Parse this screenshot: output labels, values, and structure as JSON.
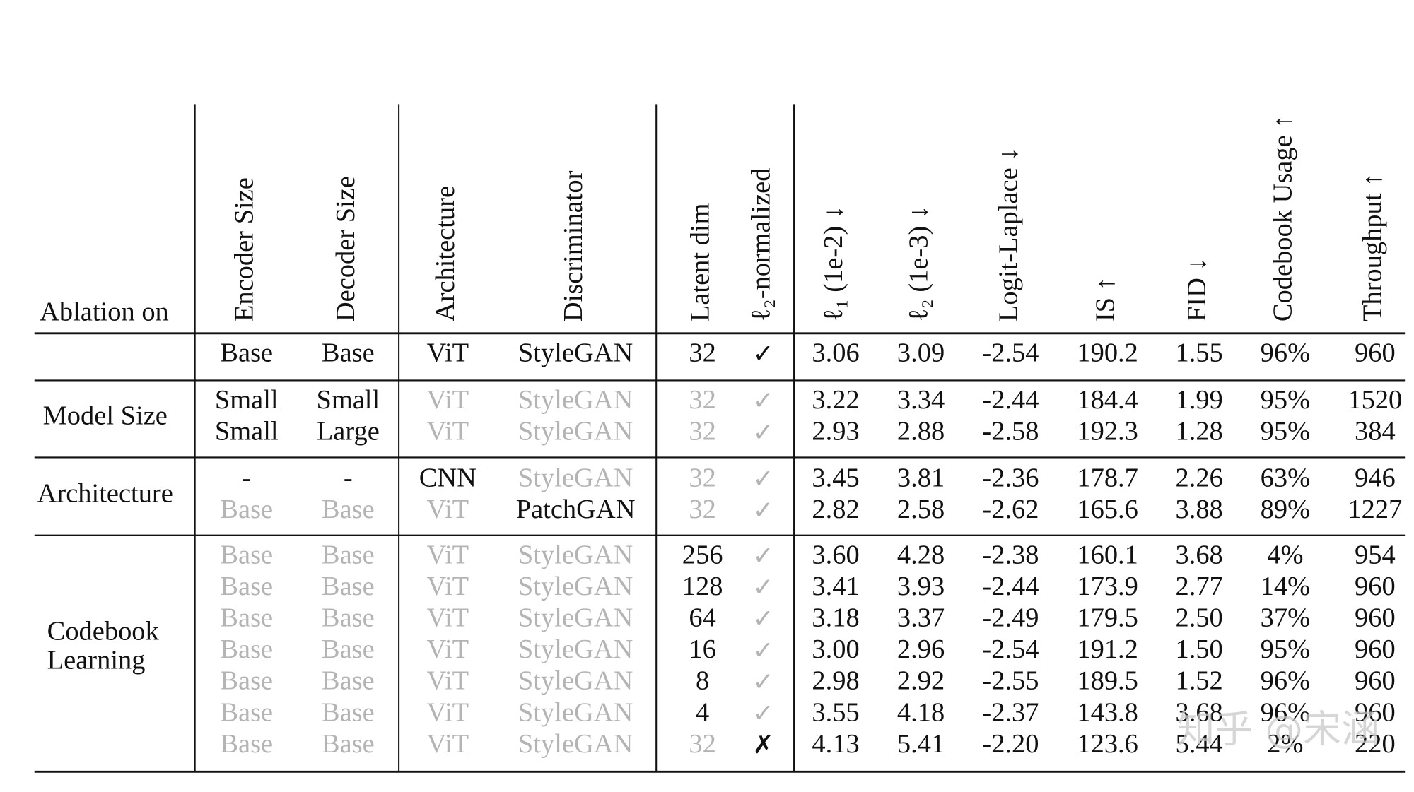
{
  "table": {
    "header": [
      "Ablation on",
      "Encoder Size",
      "Decoder Size",
      "Architecture",
      "Discriminator",
      "Latent dim",
      "ℓ₂-normalized",
      "ℓ₁ (1e-2) ↓",
      "ℓ₂ (1e-3) ↓",
      "Logit-Laplace ↓",
      "IS ↑",
      "FID ↓",
      "Codebook Usage ↑",
      "Throughput ↑"
    ],
    "groups": [
      {
        "rows": [
          {
            "cells": [
              "Base",
              "Base",
              "ViT",
              "StyleGAN",
              "32",
              "✓",
              "3.06",
              "3.09",
              "-2.54",
              "190.2",
              "1.55",
              "96%",
              "960"
            ],
            "muted": [
              false,
              false,
              false,
              false,
              false,
              false,
              false,
              false,
              false,
              false,
              false,
              false,
              false
            ]
          }
        ]
      },
      {
        "label": [
          "Model Size"
        ],
        "rows": [
          {
            "cells": [
              "Small",
              "Small",
              "ViT",
              "StyleGAN",
              "32",
              "✓",
              "3.22",
              "3.34",
              "-2.44",
              "184.4",
              "1.99",
              "95%",
              "1520"
            ],
            "muted": [
              false,
              false,
              true,
              true,
              true,
              true,
              false,
              false,
              false,
              false,
              false,
              false,
              false
            ]
          },
          {
            "cells": [
              "Small",
              "Large",
              "ViT",
              "StyleGAN",
              "32",
              "✓",
              "2.93",
              "2.88",
              "-2.58",
              "192.3",
              "1.28",
              "95%",
              "384"
            ],
            "muted": [
              false,
              false,
              true,
              true,
              true,
              true,
              false,
              false,
              false,
              false,
              false,
              false,
              false
            ]
          }
        ]
      },
      {
        "label": [
          "Architecture"
        ],
        "rows": [
          {
            "cells": [
              "-",
              "-",
              "CNN",
              "StyleGAN",
              "32",
              "✓",
              "3.45",
              "3.81",
              "-2.36",
              "178.7",
              "2.26",
              "63%",
              "946"
            ],
            "muted": [
              false,
              false,
              false,
              true,
              true,
              true,
              false,
              false,
              false,
              false,
              false,
              false,
              false
            ]
          },
          {
            "cells": [
              "Base",
              "Base",
              "ViT",
              "PatchGAN",
              "32",
              "✓",
              "2.82",
              "2.58",
              "-2.62",
              "165.6",
              "3.88",
              "89%",
              "1227"
            ],
            "muted": [
              true,
              true,
              true,
              false,
              true,
              true,
              false,
              false,
              false,
              false,
              false,
              false,
              false
            ]
          }
        ]
      },
      {
        "label": [
          "Codebook",
          "Learning"
        ],
        "rows": [
          {
            "cells": [
              "Base",
              "Base",
              "ViT",
              "StyleGAN",
              "256",
              "✓",
              "3.60",
              "4.28",
              "-2.38",
              "160.1",
              "3.68",
              "4%",
              "954"
            ],
            "muted": [
              true,
              true,
              true,
              true,
              false,
              true,
              false,
              false,
              false,
              false,
              false,
              false,
              false
            ]
          },
          {
            "cells": [
              "Base",
              "Base",
              "ViT",
              "StyleGAN",
              "128",
              "✓",
              "3.41",
              "3.93",
              "-2.44",
              "173.9",
              "2.77",
              "14%",
              "960"
            ],
            "muted": [
              true,
              true,
              true,
              true,
              false,
              true,
              false,
              false,
              false,
              false,
              false,
              false,
              false
            ]
          },
          {
            "cells": [
              "Base",
              "Base",
              "ViT",
              "StyleGAN",
              "64",
              "✓",
              "3.18",
              "3.37",
              "-2.49",
              "179.5",
              "2.50",
              "37%",
              "960"
            ],
            "muted": [
              true,
              true,
              true,
              true,
              false,
              true,
              false,
              false,
              false,
              false,
              false,
              false,
              false
            ]
          },
          {
            "cells": [
              "Base",
              "Base",
              "ViT",
              "StyleGAN",
              "16",
              "✓",
              "3.00",
              "2.96",
              "-2.54",
              "191.2",
              "1.50",
              "95%",
              "960"
            ],
            "muted": [
              true,
              true,
              true,
              true,
              false,
              true,
              false,
              false,
              false,
              false,
              false,
              false,
              false
            ]
          },
          {
            "cells": [
              "Base",
              "Base",
              "ViT",
              "StyleGAN",
              "8",
              "✓",
              "2.98",
              "2.92",
              "-2.55",
              "189.5",
              "1.52",
              "96%",
              "960"
            ],
            "muted": [
              true,
              true,
              true,
              true,
              false,
              true,
              false,
              false,
              false,
              false,
              false,
              false,
              false
            ]
          },
          {
            "cells": [
              "Base",
              "Base",
              "ViT",
              "StyleGAN",
              "4",
              "✓",
              "3.55",
              "4.18",
              "-2.37",
              "143.8",
              "3.68",
              "96%",
              "960"
            ],
            "muted": [
              true,
              true,
              true,
              true,
              false,
              true,
              false,
              false,
              false,
              false,
              false,
              false,
              false
            ]
          },
          {
            "cells": [
              "Base",
              "Base",
              "ViT",
              "StyleGAN",
              "32",
              "✗",
              "4.13",
              "5.41",
              "-2.20",
              "123.6",
              "5.44",
              "2%",
              "220"
            ],
            "muted": [
              true,
              true,
              true,
              true,
              true,
              false,
              false,
              false,
              false,
              false,
              false,
              false,
              false
            ]
          }
        ]
      }
    ]
  },
  "watermark": "知乎 @宋涵"
}
